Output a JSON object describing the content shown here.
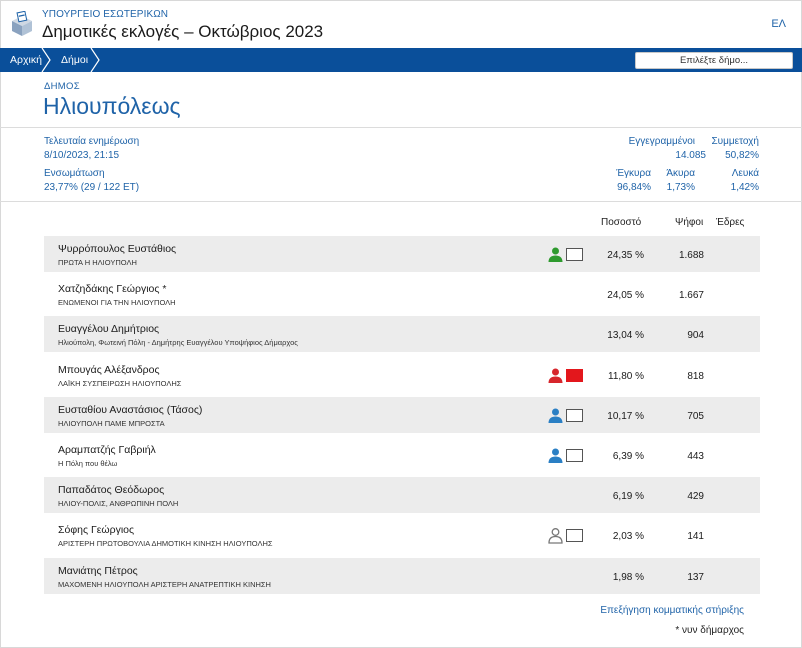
{
  "header": {
    "ministry": "ΥΠΟΥΡΓΕΙΟ ΕΣΩΤΕΡΙΚΩΝ",
    "title": "Δημοτικές εκλογές – Οκτώβριος 2023",
    "lang": "ΕΛ",
    "logo_icon": "ballot-box-icon"
  },
  "nav": {
    "breadcrumbs": [
      "Αρχική",
      "Δήμοι"
    ],
    "select_label": "Επιλέξτε δήμο..."
  },
  "municipality": {
    "label": "ΔΗΜΟΣ",
    "name": "Ηλιουπόλεως"
  },
  "stats": {
    "last_update_label": "Τελευταία ενημέρωση",
    "last_update_value": "8/10/2023, 21:15",
    "integration_label": "Ενσωμάτωση",
    "integration_value": "23,77% (29 / 122 ΕΤ)",
    "registered_label": "Εγγεγραμμένοι",
    "registered_value": "14.085",
    "turnout_label": "Συμμετοχή",
    "turnout_value": "50,82%",
    "valid_label": "Έγκυρα",
    "valid_value": "96,84%",
    "invalid_label": "Άκυρα",
    "invalid_value": "1,73%",
    "blank_label": "Λευκά",
    "blank_value": "1,42%"
  },
  "table": {
    "headers": {
      "percent": "Ποσοστό",
      "votes": "Ψήφοι",
      "seats": "Έδρες"
    },
    "rows": [
      {
        "name": "Ψυρρόπουλος Ευστάθιος",
        "party": "ΠΡΩΤΑ Η ΗΛΙΟΥΠΟΛΗ",
        "percent": "24,35 %",
        "votes": "1.688",
        "support": {
          "icon": "person-icon",
          "color": "#2e9a2e",
          "flag": "#ffffff"
        }
      },
      {
        "name": "Χατζηδάκης Γεώργιος *",
        "party": "ΕΝΩΜΕΝΟΙ ΓΙΑ ΤΗΝ ΗΛΙΟΥΠΟΛΗ",
        "percent": "24,05 %",
        "votes": "1.667",
        "support": null
      },
      {
        "name": "Ευαγγέλου Δημήτριος",
        "party": "Ηλιούπολη, Φωτεινή Πόλη - Δημήτρης Ευαγγέλου Υποψήφιος Δήμαρχος",
        "percent": "13,04 %",
        "votes": "904",
        "support": null
      },
      {
        "name": "Μπουγάς Αλέξανδρος",
        "party": "ΛΑΪΚΗ ΣΥΣΠΕΙΡΩΣΗ ΗΛΙΟΥΠΟΛΗΣ",
        "percent": "11,80 %",
        "votes": "818",
        "support": {
          "icon": "person-icon",
          "color": "#d7262c",
          "flag": "#e3171c"
        }
      },
      {
        "name": "Ευσταθίου Αναστάσιος (Τάσος)",
        "party": "ΗΛΙΟΥΠΟΛΗ ΠΑΜΕ ΜΠΡΟΣΤΑ",
        "percent": "10,17 %",
        "votes": "705",
        "support": {
          "icon": "person-icon",
          "color": "#2a7fc4",
          "flag": "#ffffff"
        }
      },
      {
        "name": "Αραμπατζής Γαβριήλ",
        "party": "Η Πόλη που θέλω",
        "percent": "6,39 %",
        "votes": "443",
        "support": {
          "icon": "person-icon",
          "color": "#2a7fc4",
          "flag": "#ffffff"
        }
      },
      {
        "name": "Παπαδάτος Θεόδωρος",
        "party": "ΗΛΙΟΥ-ΠΟΛΙΣ, ΑΝΘΡΩΠΙΝΗ ΠΟΛΗ",
        "percent": "6,19 %",
        "votes": "429",
        "support": null
      },
      {
        "name": "Σόφης Γεώργιος",
        "party": "ΑΡΙΣΤΕΡΗ ΠΡΩΤΟΒΟΥΛΙΑ ΔΗΜΟΤΙΚΗ ΚΙΝΗΣΗ ΗΛΙΟΥΠΟΛΗΣ",
        "percent": "2,03 %",
        "votes": "141",
        "support": {
          "icon": "person-outline-icon",
          "color": "#777777",
          "flag": "#ffffff"
        }
      },
      {
        "name": "Μανιάτης Πέτρος",
        "party": "ΜΑΧΟΜΕΝΗ ΗΛΙΟΥΠΟΛΗ ΑΡΙΣΤΕΡΗ ΑΝΑΤΡΕΠΤΙΚΗ ΚΙΝΗΣΗ",
        "percent": "1,98 %",
        "votes": "137",
        "support": null
      }
    ]
  },
  "footer": {
    "explain_link": "Επεξήγηση κομματικής στήριξης",
    "footnote": "* νυν δήμαρχος"
  }
}
